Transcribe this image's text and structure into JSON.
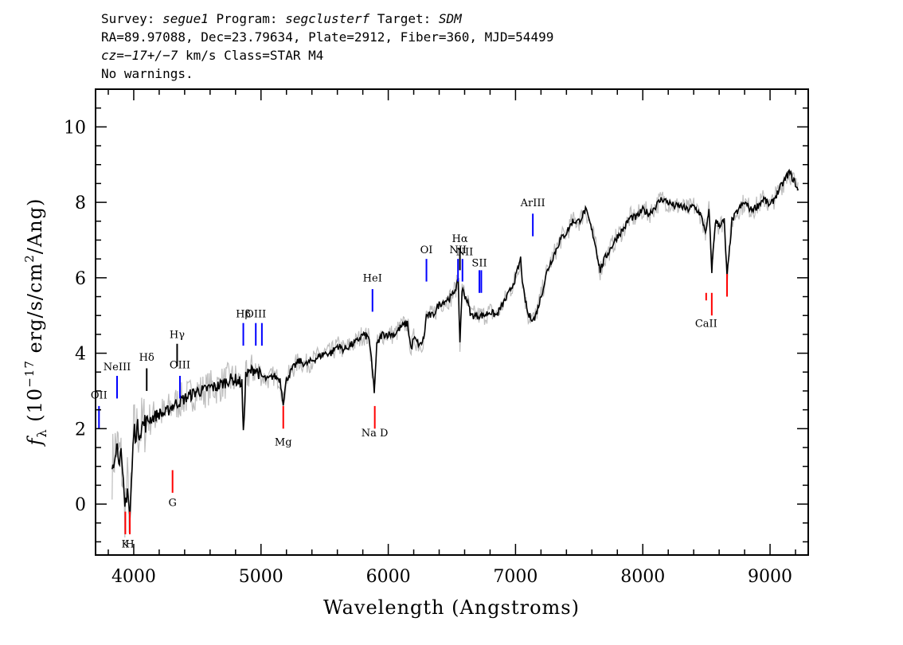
{
  "header": {
    "survey_label": "Survey: ",
    "survey": "segue1",
    "program_label": " Program: ",
    "program": "segclusterf",
    "target_label": " Target: ",
    "target": "SDM",
    "line2": "RA=89.97088, Dec=23.79634, Plate=2912, Fiber=360, MJD=54499",
    "cz": "cz=−17+/−7",
    "line3_rest": " km/s Class=STAR M4",
    "line4": "No warnings."
  },
  "chart_data": {
    "type": "line",
    "xlabel": "Wavelength (Angstroms)",
    "ylabel_prefix": "f",
    "ylabel_sub": "λ",
    "ylabel_main": " (10",
    "ylabel_exp": "−17",
    "ylabel_mid": " erg/s/cm",
    "ylabel_exp2": "2",
    "ylabel_end": "/Ang)",
    "xlim": [
      3700,
      9300
    ],
    "ylim": [
      -1.35,
      11.0
    ],
    "x_ticks": [
      4000,
      5000,
      6000,
      7000,
      8000,
      9000
    ],
    "x_tick_labels": [
      "4000",
      "5000",
      "6000",
      "7000",
      "8000",
      "9000"
    ],
    "y_ticks": [
      0,
      2,
      4,
      6,
      8,
      10
    ],
    "y_tick_labels": [
      "0",
      "2",
      "4",
      "6",
      "8",
      "10"
    ],
    "series": [
      {
        "color": "#000000",
        "points": [
          [
            3830,
            1.0
          ],
          [
            3860,
            1.6
          ],
          [
            3900,
            1.2
          ],
          [
            3930,
            -0.1
          ],
          [
            3950,
            0.5
          ],
          [
            3970,
            -0.4
          ],
          [
            4000,
            1.9
          ],
          [
            4050,
            2.0
          ],
          [
            4100,
            2.2
          ],
          [
            4150,
            2.3
          ],
          [
            4200,
            2.4
          ],
          [
            4250,
            2.4
          ],
          [
            4300,
            2.6
          ],
          [
            4350,
            2.7
          ],
          [
            4400,
            2.8
          ],
          [
            4450,
            2.9
          ],
          [
            4500,
            3.0
          ],
          [
            4550,
            3.0
          ],
          [
            4600,
            3.1
          ],
          [
            4650,
            3.1
          ],
          [
            4700,
            3.2
          ],
          [
            4750,
            3.3
          ],
          [
            4800,
            3.3
          ],
          [
            4850,
            3.2
          ],
          [
            4861,
            1.8
          ],
          [
            4880,
            3.4
          ],
          [
            4950,
            3.6
          ],
          [
            5000,
            3.4
          ],
          [
            5050,
            3.3
          ],
          [
            5100,
            3.4
          ],
          [
            5150,
            3.3
          ],
          [
            5175,
            2.7
          ],
          [
            5200,
            3.3
          ],
          [
            5250,
            3.6
          ],
          [
            5300,
            3.8
          ],
          [
            5350,
            3.7
          ],
          [
            5400,
            3.8
          ],
          [
            5450,
            3.9
          ],
          [
            5500,
            4.0
          ],
          [
            5550,
            4.0
          ],
          [
            5600,
            4.2
          ],
          [
            5650,
            4.1
          ],
          [
            5700,
            4.2
          ],
          [
            5750,
            4.3
          ],
          [
            5800,
            4.5
          ],
          [
            5850,
            4.4
          ],
          [
            5890,
            3.0
          ],
          [
            5910,
            4.2
          ],
          [
            5950,
            4.5
          ],
          [
            6000,
            4.5
          ],
          [
            6050,
            4.5
          ],
          [
            6100,
            4.7
          ],
          [
            6150,
            4.8
          ],
          [
            6180,
            4.1
          ],
          [
            6200,
            4.4
          ],
          [
            6250,
            4.2
          ],
          [
            6280,
            4.4
          ],
          [
            6300,
            5.0
          ],
          [
            6350,
            5.0
          ],
          [
            6400,
            5.3
          ],
          [
            6450,
            5.4
          ],
          [
            6500,
            5.5
          ],
          [
            6550,
            5.9
          ],
          [
            6563,
            4.3
          ],
          [
            6580,
            5.7
          ],
          [
            6620,
            5.4
          ],
          [
            6650,
            5.0
          ],
          [
            6700,
            5.0
          ],
          [
            6750,
            5.0
          ],
          [
            6800,
            5.1
          ],
          [
            6850,
            5.0
          ],
          [
            6900,
            5.3
          ],
          [
            6950,
            5.6
          ],
          [
            7000,
            6.0
          ],
          [
            7040,
            6.5
          ],
          [
            7060,
            5.7
          ],
          [
            7100,
            5.0
          ],
          [
            7150,
            4.9
          ],
          [
            7200,
            5.5
          ],
          [
            7250,
            6.2
          ],
          [
            7300,
            6.6
          ],
          [
            7350,
            7.0
          ],
          [
            7400,
            7.2
          ],
          [
            7450,
            7.5
          ],
          [
            7500,
            7.5
          ],
          [
            7550,
            7.8
          ],
          [
            7580,
            7.5
          ],
          [
            7620,
            7.0
          ],
          [
            7665,
            6.2
          ],
          [
            7700,
            6.5
          ],
          [
            7750,
            6.8
          ],
          [
            7800,
            7.1
          ],
          [
            7850,
            7.3
          ],
          [
            7900,
            7.6
          ],
          [
            7950,
            7.6
          ],
          [
            8000,
            7.8
          ],
          [
            8050,
            7.7
          ],
          [
            8100,
            7.9
          ],
          [
            8150,
            8.1
          ],
          [
            8200,
            8.0
          ],
          [
            8250,
            7.9
          ],
          [
            8300,
            7.9
          ],
          [
            8350,
            7.8
          ],
          [
            8400,
            7.9
          ],
          [
            8450,
            7.7
          ],
          [
            8498,
            7.2
          ],
          [
            8520,
            7.8
          ],
          [
            8542,
            6.2
          ],
          [
            8570,
            7.5
          ],
          [
            8600,
            7.4
          ],
          [
            8640,
            7.5
          ],
          [
            8662,
            6.0
          ],
          [
            8700,
            7.5
          ],
          [
            8750,
            7.8
          ],
          [
            8800,
            8.0
          ],
          [
            8850,
            7.8
          ],
          [
            8900,
            7.9
          ],
          [
            8950,
            8.1
          ],
          [
            9000,
            7.9
          ],
          [
            9050,
            8.2
          ],
          [
            9100,
            8.5
          ],
          [
            9150,
            8.8
          ],
          [
            9200,
            8.5
          ],
          [
            9220,
            8.3
          ]
        ]
      }
    ],
    "lines": [
      {
        "label": "OII",
        "x": 3727,
        "color": "blue",
        "y0": 2.0,
        "y1": 2.6,
        "label_y": 2.8
      },
      {
        "label": "NeIII",
        "x": 3869,
        "color": "blue",
        "y0": 2.8,
        "y1": 3.4,
        "label_y": 3.55
      },
      {
        "label": "Hδ",
        "x": 4102,
        "color": "black",
        "y0": 3.0,
        "y1": 3.6,
        "label_y": 3.8
      },
      {
        "label": "Hγ",
        "x": 4341,
        "color": "black",
        "y0": 3.65,
        "y1": 4.25,
        "label_y": 4.4
      },
      {
        "label": "OIII",
        "x": 4363,
        "color": "blue",
        "y0": 2.8,
        "y1": 3.4,
        "label_y": 3.6
      },
      {
        "label": "Hβ",
        "x": 4861,
        "color": "blue",
        "y0": 4.2,
        "y1": 4.8,
        "label_y": 4.95
      },
      {
        "label": "OIII",
        "x": 4959,
        "color": "blue",
        "y0": 4.2,
        "y1": 4.8,
        "label_y": 4.95
      },
      {
        "label": "",
        "x": 5007,
        "color": "blue",
        "y0": 4.2,
        "y1": 4.8,
        "label_y": 4.95
      },
      {
        "label": "HeI",
        "x": 5876,
        "color": "blue",
        "y0": 5.1,
        "y1": 5.7,
        "label_y": 5.9
      },
      {
        "label": "OI",
        "x": 6300,
        "color": "blue",
        "y0": 5.9,
        "y1": 6.5,
        "label_y": 6.65
      },
      {
        "label": "NII",
        "x": 6548,
        "color": "blue",
        "y0": 5.9,
        "y1": 6.5,
        "label_y": 6.65
      },
      {
        "label": "Hα",
        "x": 6563,
        "color": "black",
        "y0": 6.2,
        "y1": 6.8,
        "label_y": 6.95
      },
      {
        "label": "",
        "x": 6583,
        "color": "blue",
        "y0": 5.9,
        "y1": 6.5,
        "label_y": 6.65
      },
      {
        "label": "NII",
        "x": 6600,
        "color": "none",
        "y0": 0,
        "y1": 0,
        "label_y": 6.6
      },
      {
        "label": "SII",
        "x": 6716,
        "color": "blue",
        "y0": 5.6,
        "y1": 6.2,
        "label_y": 6.3
      },
      {
        "label": "",
        "x": 6731,
        "color": "blue",
        "y0": 5.6,
        "y1": 6.2,
        "label_y": 6.3
      },
      {
        "label": "ArIII",
        "x": 7136,
        "color": "blue",
        "y0": 7.1,
        "y1": 7.7,
        "label_y": 7.9
      },
      {
        "label": "K",
        "x": 3934,
        "color": "red",
        "y0": -0.8,
        "y1": -0.2,
        "label_y": -1.15
      },
      {
        "label": "H",
        "x": 3969,
        "color": "red",
        "y0": -0.8,
        "y1": -0.2,
        "label_y": -1.15
      },
      {
        "label": "G",
        "x": 4305,
        "color": "red",
        "y0": 0.3,
        "y1": 0.9,
        "label_y": -0.05
      },
      {
        "label": "Mg",
        "x": 5175,
        "color": "red",
        "y0": 2.0,
        "y1": 2.6,
        "label_y": 1.55
      },
      {
        "label": "Na D",
        "x": 5894,
        "color": "red",
        "y0": 2.0,
        "y1": 2.6,
        "label_y": 1.8
      },
      {
        "label": "CaII",
        "x": 8498,
        "color": "red",
        "y0": 5.4,
        "y1": 5.6,
        "label_y": 4.7
      },
      {
        "label": "",
        "x": 8542,
        "color": "red",
        "y0": 5.0,
        "y1": 5.6,
        "label_y": 4.7
      },
      {
        "label": "",
        "x": 8662,
        "color": "red",
        "y0": 5.5,
        "y1": 6.1,
        "label_y": 4.7
      }
    ]
  }
}
